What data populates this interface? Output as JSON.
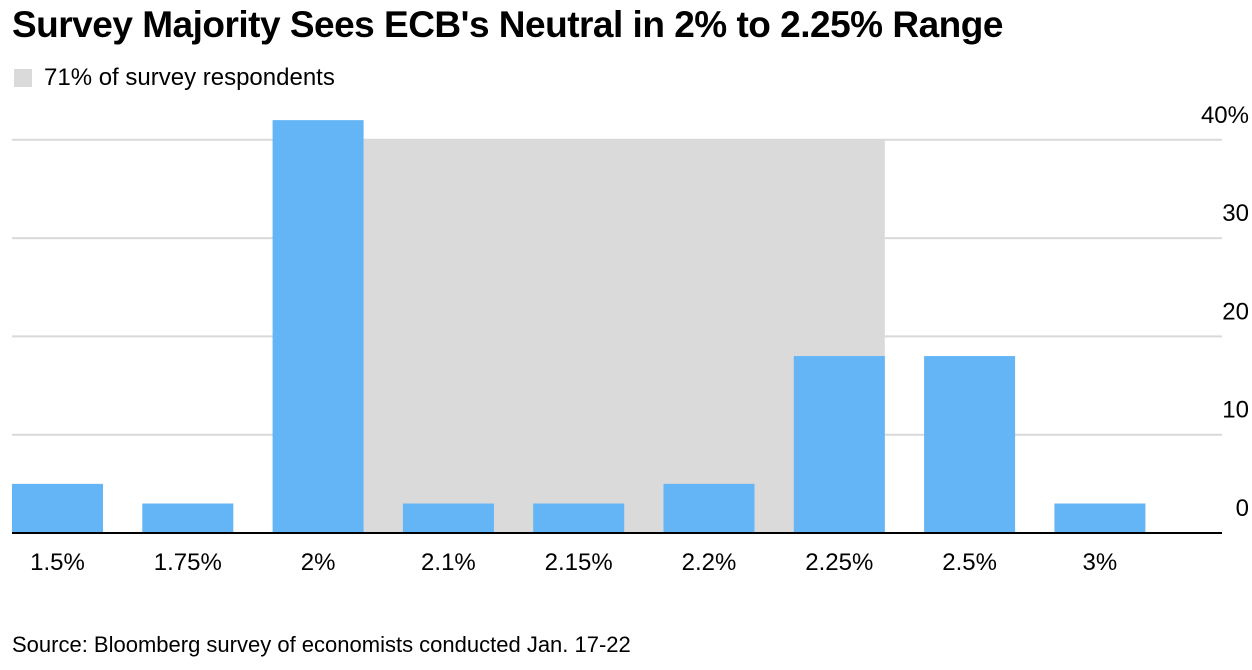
{
  "title": "Survey Majority Sees ECB's Neutral in 2% to 2.25% Range",
  "legend": {
    "label": "71% of survey respondents",
    "color": "#dadada"
  },
  "source": "Source: Bloomberg survey of economists conducted Jan. 17-22",
  "chart_data": {
    "type": "bar",
    "categories": [
      "1.5%",
      "1.75%",
      "2%",
      "2.1%",
      "2.15%",
      "2.2%",
      "2.25%",
      "2.5%",
      "3%"
    ],
    "values": [
      5,
      3,
      42,
      3,
      3,
      5,
      18,
      18,
      3
    ],
    "title": "Survey Majority Sees ECB's Neutral in 2% to 2.25% Range",
    "xlabel": "",
    "ylabel": "",
    "ylim": [
      0,
      40
    ],
    "yticks": [
      "0",
      "10",
      "20",
      "30",
      "40%"
    ],
    "ytick_values": [
      0,
      10,
      20,
      30,
      40
    ],
    "grid": true,
    "y_axis_position": "right",
    "bar_color": "#63b5f5",
    "shaded_range": {
      "from_category": "2%",
      "to_category": "2.25%",
      "label": "71% of survey respondents",
      "color": "#dadada"
    }
  }
}
